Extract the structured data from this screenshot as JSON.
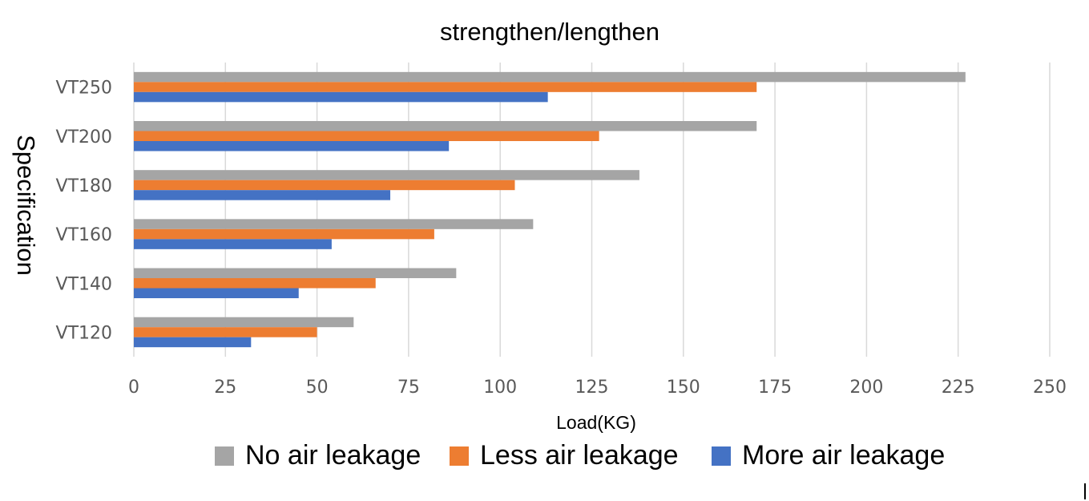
{
  "chart_data": {
    "type": "bar",
    "orientation": "horizontal",
    "title": "strengthen/lengthen",
    "xlabel": "Load(KG)",
    "ylabel": "Specification",
    "categories": [
      "VT120",
      "VT140",
      "VT160",
      "VT180",
      "VT200",
      "VT250"
    ],
    "series": [
      {
        "name": "No air leakage",
        "color": "#a5a5a5",
        "values": [
          60,
          88,
          109,
          138,
          170,
          227
        ]
      },
      {
        "name": "Less air leakage",
        "color": "#ed7d31",
        "values": [
          50,
          66,
          82,
          104,
          127,
          170
        ]
      },
      {
        "name": "More air leakage",
        "color": "#4472c4",
        "values": [
          32,
          45,
          54,
          70,
          86,
          113
        ]
      }
    ],
    "xlim": [
      0,
      250
    ],
    "xticks": [
      "0",
      "25",
      "50",
      "75",
      "100",
      "125",
      "150",
      "175",
      "200",
      "225",
      "250"
    ],
    "grid": true,
    "legend_position": "bottom"
  }
}
